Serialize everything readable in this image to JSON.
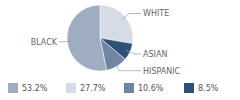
{
  "chart_data": {
    "type": "pie",
    "categories": [
      "BLACK",
      "WHITE",
      "HISPANIC",
      "ASIAN"
    ],
    "values": [
      53.2,
      27.7,
      10.6,
      8.5
    ],
    "value_labels": [
      "53.2%",
      "27.7%",
      "10.6%",
      "8.5%"
    ],
    "colors": [
      "#9fadc1",
      "#d6dce5",
      "#6e85a3",
      "#2f5077"
    ]
  }
}
